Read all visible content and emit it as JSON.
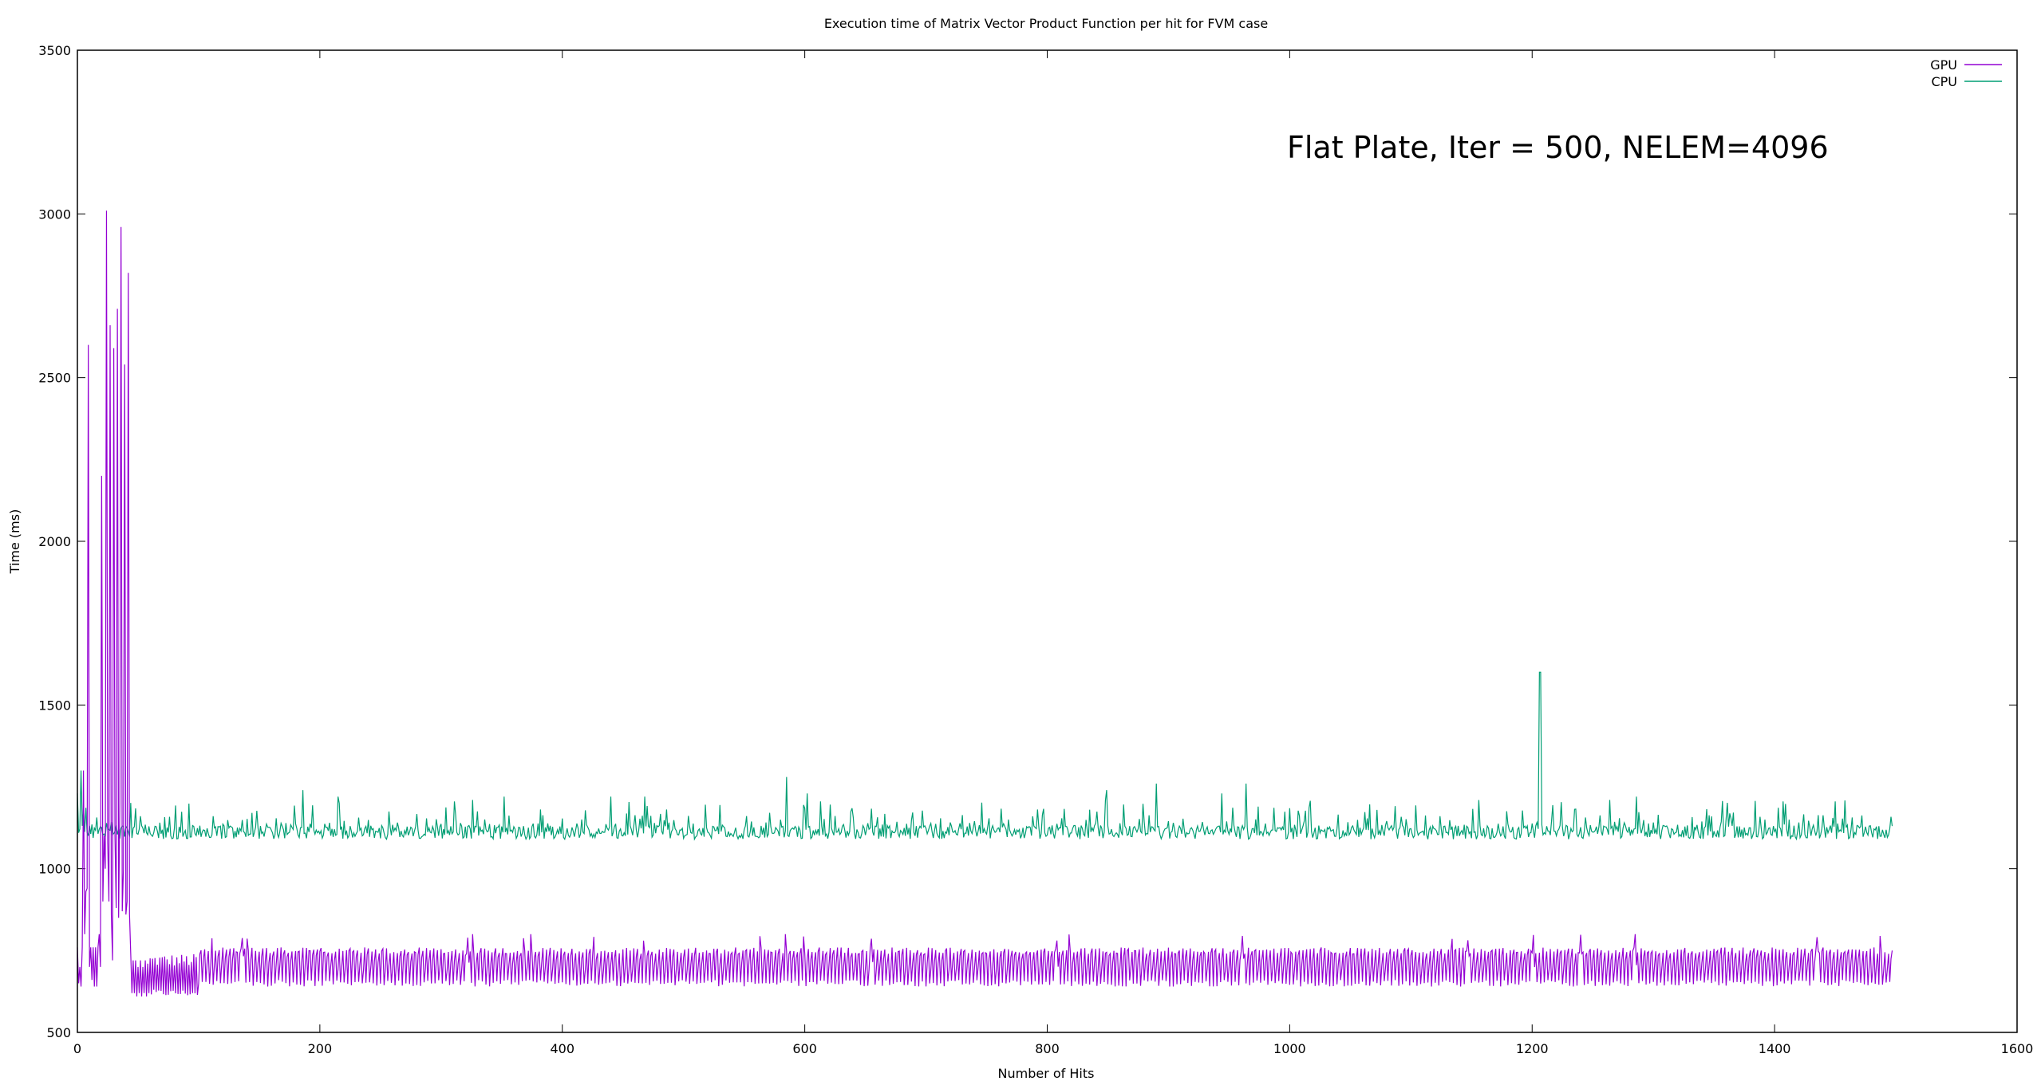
{
  "chart_data": {
    "type": "line",
    "title": "Execution time of Matrix Vector Product Function per hit for FVM case",
    "xlabel": "Number of Hits",
    "ylabel": "Time (ms)",
    "annotation": "Flat Plate, Iter = 500, NELEM=4096",
    "xlim": [
      0,
      1600
    ],
    "ylim": [
      500,
      3500
    ],
    "xticks": [
      0,
      200,
      400,
      600,
      800,
      1000,
      1200,
      1400,
      1600
    ],
    "yticks": [
      500,
      1000,
      1500,
      2000,
      2500,
      3000,
      3500
    ],
    "grid": false,
    "legend_position": "top-right",
    "series": [
      {
        "name": "GPU",
        "color": "#9400d3",
        "description": "Large spikes up to ~3000 ms during the first ~45 hits, then oscillates roughly between 620 and 760 ms through hit 1500",
        "initial_points": [
          [
            0,
            760
          ],
          [
            1,
            650
          ],
          [
            2,
            700
          ],
          [
            3,
            640
          ],
          [
            4,
            760
          ],
          [
            5,
            1300
          ],
          [
            6,
            800
          ],
          [
            7,
            930
          ],
          [
            8,
            940
          ],
          [
            9,
            2600
          ],
          [
            10,
            700
          ],
          [
            11,
            760
          ],
          [
            12,
            660
          ],
          [
            13,
            760
          ],
          [
            14,
            640
          ],
          [
            15,
            760
          ],
          [
            16,
            640
          ],
          [
            17,
            760
          ],
          [
            18,
            800
          ],
          [
            19,
            700
          ],
          [
            20,
            2200
          ],
          [
            21,
            900
          ],
          [
            22,
            1100
          ],
          [
            23,
            1000
          ],
          [
            24,
            3010
          ],
          [
            25,
            1080
          ],
          [
            26,
            900
          ],
          [
            27,
            2660
          ],
          [
            28,
            860
          ],
          [
            29,
            720
          ],
          [
            30,
            2590
          ],
          [
            31,
            1100
          ],
          [
            32,
            880
          ],
          [
            33,
            2710
          ],
          [
            34,
            850
          ],
          [
            35,
            1200
          ],
          [
            36,
            2960
          ],
          [
            37,
            870
          ],
          [
            38,
            1000
          ],
          [
            39,
            2540
          ],
          [
            40,
            860
          ],
          [
            41,
            900
          ],
          [
            42,
            2820
          ],
          [
            43,
            860
          ],
          [
            44,
            740
          ],
          [
            45,
            620
          ],
          [
            46,
            720
          ],
          [
            47,
            620
          ],
          [
            48,
            720
          ],
          [
            49,
            610
          ],
          [
            50,
            700
          ],
          [
            51,
            620
          ],
          [
            52,
            720
          ],
          [
            53,
            610
          ],
          [
            54,
            700
          ],
          [
            55,
            620
          ],
          [
            56,
            720
          ],
          [
            57,
            610
          ],
          [
            58,
            710
          ],
          [
            59,
            620
          ]
        ],
        "steady_range": [
          610,
          800
        ],
        "x_range": [
          0,
          1497
        ]
      },
      {
        "name": "CPU",
        "color": "#009e73",
        "description": "Roughly flat around 1100–1150 ms with noise; notable spike to ~1600 ms near hit 1207",
        "spikes": [
          [
            0,
            1230
          ],
          [
            3,
            1300
          ],
          [
            186,
            1240
          ],
          [
            215,
            1220
          ],
          [
            326,
            1210
          ],
          [
            352,
            1220
          ],
          [
            440,
            1220
          ],
          [
            468,
            1220
          ],
          [
            585,
            1280
          ],
          [
            602,
            1230
          ],
          [
            849,
            1240
          ],
          [
            890,
            1260
          ],
          [
            944,
            1230
          ],
          [
            964,
            1260
          ],
          [
            1206,
            1600
          ],
          [
            1207,
            1600
          ],
          [
            1264,
            1210
          ],
          [
            1286,
            1220
          ]
        ],
        "baseline_range": [
          1090,
          1160
        ],
        "x_range": [
          0,
          1497
        ]
      }
    ]
  }
}
